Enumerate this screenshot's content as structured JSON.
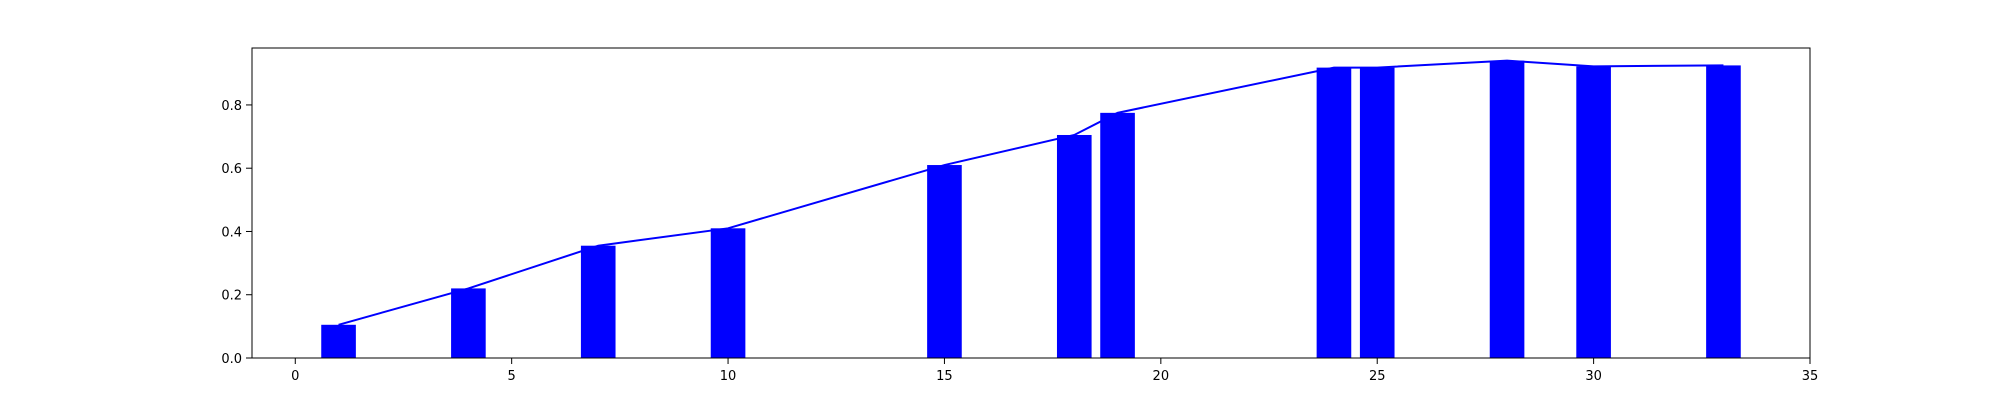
{
  "chart_data": {
    "type": "bar",
    "title": "",
    "xlabel": "",
    "ylabel": "",
    "xlim": [
      -1,
      35
    ],
    "ylim": [
      0,
      0.98
    ],
    "grid": false,
    "x": [
      1,
      4,
      7,
      10,
      15,
      18,
      19,
      24,
      25,
      28,
      30,
      33
    ],
    "values": [
      0.105,
      0.22,
      0.355,
      0.41,
      0.61,
      0.705,
      0.775,
      0.918,
      0.918,
      0.94,
      0.922,
      0.925
    ],
    "bar_width": 0.8,
    "line_overlay": true,
    "bar_color": "#0000ff",
    "line_color": "#0000ff",
    "x_ticks": [
      0,
      5,
      10,
      15,
      20,
      25,
      30,
      35
    ],
    "x_tick_labels": [
      "0",
      "5",
      "10",
      "15",
      "20",
      "25",
      "30",
      "35"
    ],
    "y_ticks": [
      0.0,
      0.2,
      0.4,
      0.6,
      0.8
    ],
    "y_tick_labels": [
      "0.0",
      "0.2",
      "0.4",
      "0.6",
      "0.8"
    ]
  }
}
